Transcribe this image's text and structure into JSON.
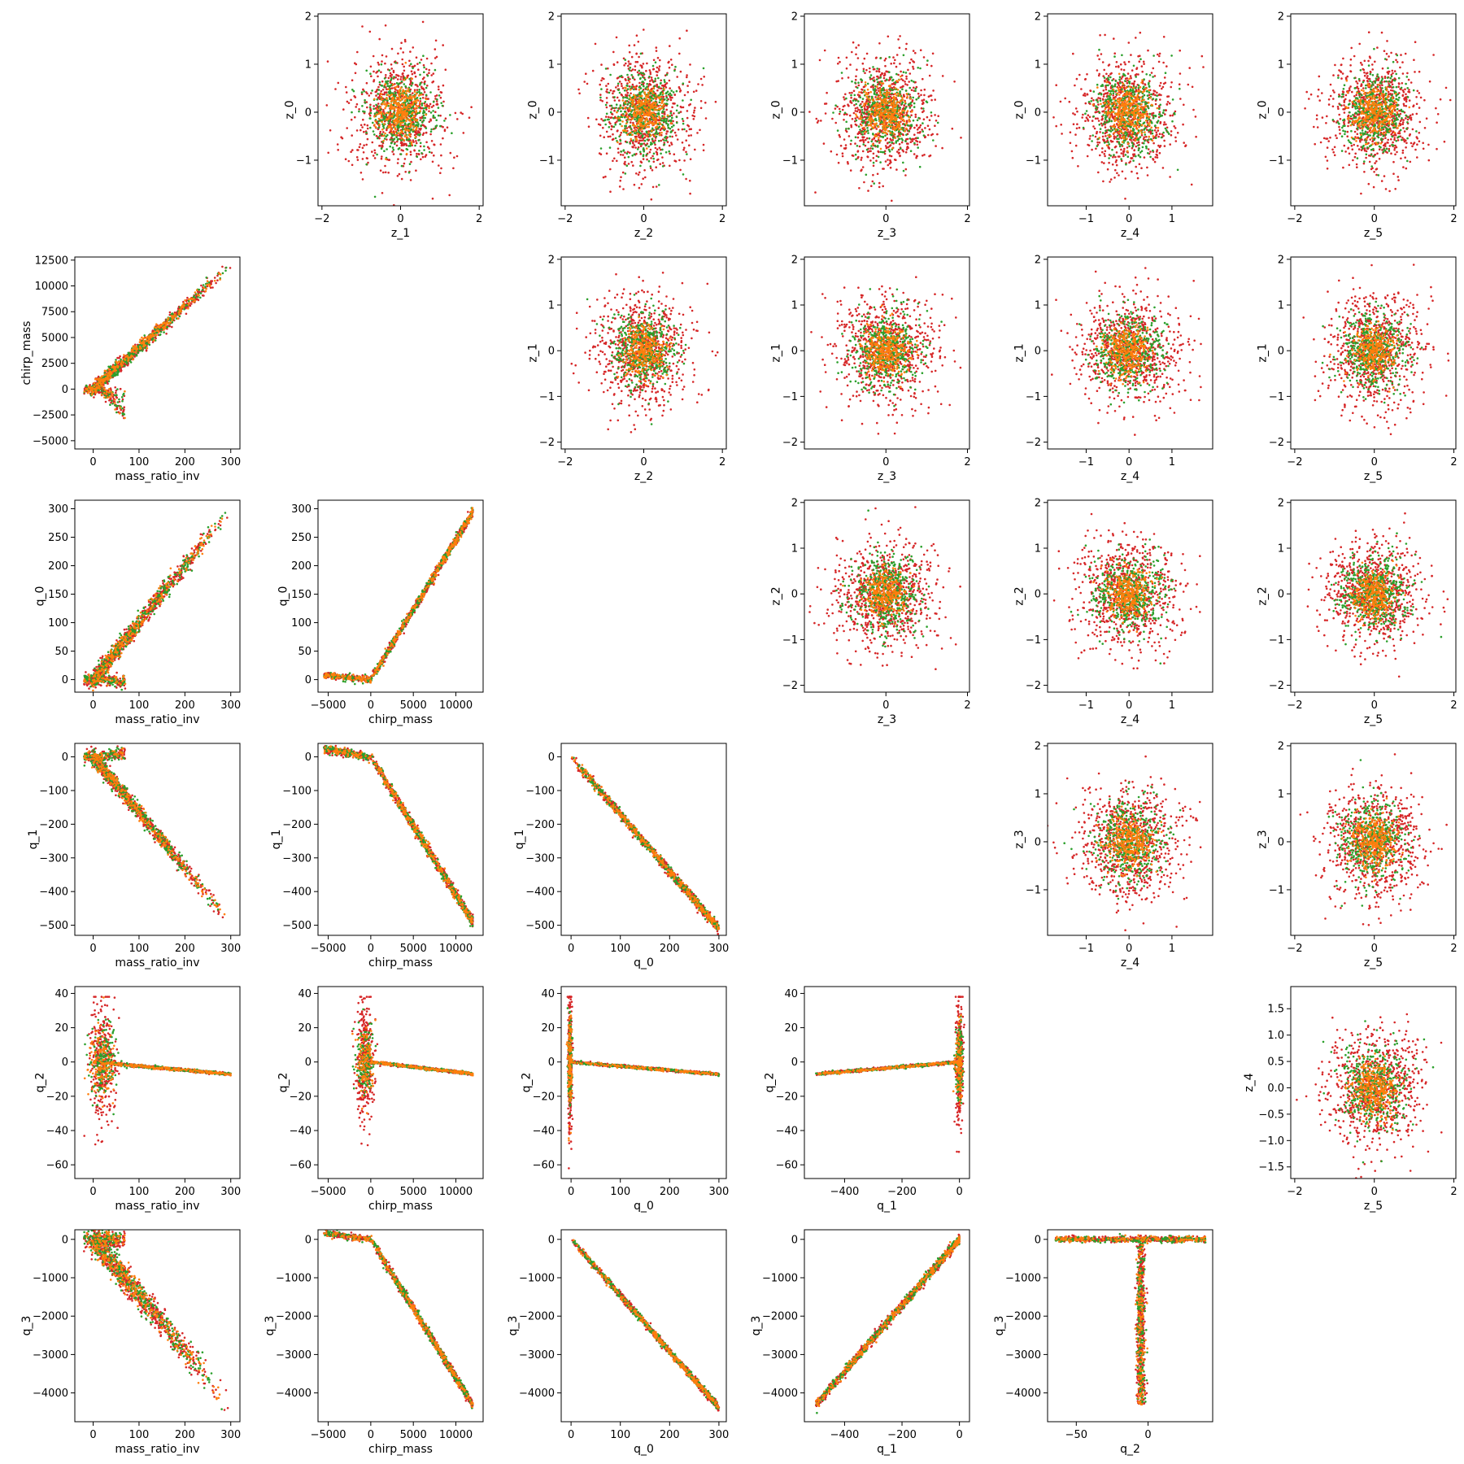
{
  "chart_data": {
    "type": "scatter",
    "layout": "6x6 pair grid; cells on/above diagonal-1 shown",
    "series_colors": {
      "green": "#2ca02c",
      "orange": "#ff7f0e",
      "red": "#d62728"
    },
    "panels": [
      {
        "row": 0,
        "col": 1,
        "xlabel": "z_1",
        "ylabel": "z_0",
        "xlim": [
          -2.1,
          2.1
        ],
        "ylim": [
          -1.95,
          2.05
        ],
        "xticks": [
          -2,
          0,
          2
        ],
        "yticks": [
          -1,
          0,
          1,
          2
        ],
        "kind": "gauss",
        "sx": 0.6,
        "sy": 0.6
      },
      {
        "row": 0,
        "col": 2,
        "xlabel": "z_2",
        "ylabel": "z_0",
        "xlim": [
          -2.1,
          2.1
        ],
        "ylim": [
          -1.95,
          2.05
        ],
        "xticks": [
          -2,
          0,
          2
        ],
        "yticks": [
          -1,
          0,
          1,
          2
        ],
        "kind": "gauss",
        "sx": 0.6,
        "sy": 0.6
      },
      {
        "row": 0,
        "col": 3,
        "xlabel": "z_3",
        "ylabel": "z_0",
        "xlim": [
          -2.0,
          2.05
        ],
        "ylim": [
          -1.95,
          2.05
        ],
        "xticks": [
          0,
          2
        ],
        "yticks": [
          -1,
          0,
          1,
          2
        ],
        "kind": "gauss",
        "sx": 0.6,
        "sy": 0.6
      },
      {
        "row": 0,
        "col": 4,
        "xlabel": "z_4",
        "ylabel": "z_0",
        "xlim": [
          -1.9,
          1.95
        ],
        "ylim": [
          -1.95,
          2.05
        ],
        "xticks": [
          -1,
          0,
          1
        ],
        "yticks": [
          -1,
          0,
          1,
          2
        ],
        "kind": "gauss",
        "sx": 0.6,
        "sy": 0.6
      },
      {
        "row": 0,
        "col": 5,
        "xlabel": "z_5",
        "ylabel": "z_0",
        "xlim": [
          -2.1,
          2.05
        ],
        "ylim": [
          -1.95,
          2.05
        ],
        "xticks": [
          -2,
          0,
          2
        ],
        "yticks": [
          -1,
          0,
          1,
          2
        ],
        "kind": "gauss",
        "sx": 0.6,
        "sy": 0.6
      },
      {
        "row": 1,
        "col": 0,
        "xlabel": "mass_ratio_inv",
        "ylabel": "chirp_mass",
        "xlim": [
          -40,
          320
        ],
        "ylim": [
          -5800,
          12800
        ],
        "xticks": [
          0,
          100,
          200,
          300
        ],
        "yticks": [
          -5000,
          -2500,
          0,
          2500,
          5000,
          7500,
          10000,
          12500
        ],
        "kind": "lin_branch",
        "a": 40,
        "b": 0,
        "n2": -2500,
        "spread": 300
      },
      {
        "row": 1,
        "col": 2,
        "xlabel": "z_2",
        "ylabel": "z_1",
        "xlim": [
          -2.1,
          2.1
        ],
        "ylim": [
          -2.15,
          2.05
        ],
        "xticks": [
          -2,
          0,
          2
        ],
        "yticks": [
          -2,
          -1,
          0,
          1,
          2
        ],
        "kind": "gauss",
        "sx": 0.6,
        "sy": 0.6
      },
      {
        "row": 1,
        "col": 3,
        "xlabel": "z_3",
        "ylabel": "z_1",
        "xlim": [
          -2.0,
          2.05
        ],
        "ylim": [
          -2.15,
          2.05
        ],
        "xticks": [
          0,
          2
        ],
        "yticks": [
          -2,
          -1,
          0,
          1,
          2
        ],
        "kind": "gauss",
        "sx": 0.6,
        "sy": 0.6
      },
      {
        "row": 1,
        "col": 4,
        "xlabel": "z_4",
        "ylabel": "z_1",
        "xlim": [
          -1.9,
          1.95
        ],
        "ylim": [
          -2.15,
          2.05
        ],
        "xticks": [
          -1,
          0,
          1
        ],
        "yticks": [
          -2,
          -1,
          0,
          1,
          2
        ],
        "kind": "gauss",
        "sx": 0.6,
        "sy": 0.6
      },
      {
        "row": 1,
        "col": 5,
        "xlabel": "z_5",
        "ylabel": "z_1",
        "xlim": [
          -2.1,
          2.05
        ],
        "ylim": [
          -2.15,
          2.05
        ],
        "xticks": [
          -2,
          0,
          2
        ],
        "yticks": [
          -2,
          -1,
          0,
          1,
          2
        ],
        "kind": "gauss",
        "sx": 0.6,
        "sy": 0.6
      },
      {
        "row": 2,
        "col": 0,
        "xlabel": "mass_ratio_inv",
        "ylabel": "q_0",
        "xlim": [
          -40,
          320
        ],
        "ylim": [
          -22,
          315
        ],
        "xticks": [
          0,
          100,
          200,
          300
        ],
        "yticks": [
          0,
          50,
          100,
          150,
          200,
          250,
          300
        ],
        "kind": "lin_branch",
        "a": 1,
        "b": 0,
        "n2": -8,
        "spread": 8
      },
      {
        "row": 2,
        "col": 1,
        "xlabel": "chirp_mass",
        "ylabel": "q_0",
        "xlim": [
          -6200,
          13200
        ],
        "ylim": [
          -22,
          315
        ],
        "xticks": [
          -5000,
          0,
          5000,
          10000
        ],
        "yticks": [
          0,
          50,
          100,
          150,
          200,
          250,
          300
        ],
        "kind": "hinge",
        "slope": 0.0245,
        "neg": 0.0015,
        "spread": 4
      },
      {
        "row": 2,
        "col": 3,
        "xlabel": "z_3",
        "ylabel": "z_2",
        "xlim": [
          -2.0,
          2.05
        ],
        "ylim": [
          -2.15,
          2.05
        ],
        "xticks": [
          0,
          2
        ],
        "yticks": [
          -2,
          -1,
          0,
          1,
          2
        ],
        "kind": "gauss",
        "sx": 0.6,
        "sy": 0.6
      },
      {
        "row": 2,
        "col": 4,
        "xlabel": "z_4",
        "ylabel": "z_2",
        "xlim": [
          -1.9,
          1.95
        ],
        "ylim": [
          -2.15,
          2.05
        ],
        "xticks": [
          -1,
          0,
          1
        ],
        "yticks": [
          -2,
          -1,
          0,
          1,
          2
        ],
        "kind": "gauss",
        "sx": 0.6,
        "sy": 0.6
      },
      {
        "row": 2,
        "col": 5,
        "xlabel": "z_5",
        "ylabel": "z_2",
        "xlim": [
          -2.1,
          2.05
        ],
        "ylim": [
          -2.15,
          2.05
        ],
        "xticks": [
          -2,
          0,
          2
        ],
        "yticks": [
          -2,
          -1,
          0,
          1,
          2
        ],
        "kind": "gauss",
        "sx": 0.6,
        "sy": 0.6
      },
      {
        "row": 3,
        "col": 0,
        "xlabel": "mass_ratio_inv",
        "ylabel": "q_1",
        "xlim": [
          -40,
          320
        ],
        "ylim": [
          -530,
          40
        ],
        "xticks": [
          0,
          100,
          200,
          300
        ],
        "yticks": [
          -500,
          -400,
          -300,
          -200,
          -100,
          0
        ],
        "kind": "lin_branch",
        "a": -1.65,
        "b": 0,
        "n2": 20,
        "spread": 12
      },
      {
        "row": 3,
        "col": 1,
        "xlabel": "chirp_mass",
        "ylabel": "q_1",
        "xlim": [
          -6200,
          13200
        ],
        "ylim": [
          -530,
          40
        ],
        "xticks": [
          -5000,
          0,
          5000,
          10000
        ],
        "yticks": [
          -500,
          -400,
          -300,
          -200,
          -100,
          0
        ],
        "kind": "hinge",
        "slope": -0.041,
        "neg": -0.004,
        "spread": 8
      },
      {
        "row": 3,
        "col": 2,
        "xlabel": "q_0",
        "ylabel": "q_1",
        "xlim": [
          -20,
          315
        ],
        "ylim": [
          -530,
          40
        ],
        "xticks": [
          0,
          100,
          200,
          300
        ],
        "yticks": [
          -500,
          -400,
          -300,
          -200,
          -100,
          0
        ],
        "kind": "line",
        "slope": -1.7,
        "spread": 7
      },
      {
        "row": 3,
        "col": 4,
        "xlabel": "z_4",
        "ylabel": "z_3",
        "xlim": [
          -1.9,
          1.95
        ],
        "ylim": [
          -1.95,
          2.05
        ],
        "xticks": [
          -1,
          0,
          1
        ],
        "yticks": [
          -1,
          0,
          1,
          2
        ],
        "kind": "gauss",
        "sx": 0.6,
        "sy": 0.6
      },
      {
        "row": 3,
        "col": 5,
        "xlabel": "z_5",
        "ylabel": "z_3",
        "xlim": [
          -2.1,
          2.05
        ],
        "ylim": [
          -1.95,
          2.05
        ],
        "xticks": [
          -2,
          0,
          2
        ],
        "yticks": [
          -1,
          0,
          1,
          2
        ],
        "kind": "gauss",
        "sx": 0.6,
        "sy": 0.6
      },
      {
        "row": 4,
        "col": 0,
        "xlabel": "mass_ratio_inv",
        "ylabel": "q_2",
        "xlim": [
          -40,
          320
        ],
        "ylim": [
          -68,
          44
        ],
        "xticks": [
          0,
          100,
          200,
          300
        ],
        "yticks": [
          -60,
          -40,
          -20,
          0,
          20,
          40
        ],
        "kind": "cross",
        "slope": -0.024,
        "vx": 20,
        "vspread": 14,
        "vsd": 18
      },
      {
        "row": 4,
        "col": 1,
        "xlabel": "chirp_mass",
        "ylabel": "q_2",
        "xlim": [
          -6200,
          13200
        ],
        "ylim": [
          -68,
          44
        ],
        "xticks": [
          -5000,
          0,
          5000,
          10000
        ],
        "yticks": [
          -60,
          -40,
          -20,
          0,
          20,
          40
        ],
        "kind": "cross",
        "slope": -0.00058,
        "vx": -700,
        "vspread": 500,
        "vsd": 18
      },
      {
        "row": 4,
        "col": 2,
        "xlabel": "q_0",
        "ylabel": "q_2",
        "xlim": [
          -20,
          315
        ],
        "ylim": [
          -68,
          44
        ],
        "xticks": [
          0,
          100,
          200,
          300
        ],
        "yticks": [
          -60,
          -40,
          -20,
          0,
          20,
          40
        ],
        "kind": "cross",
        "slope": -0.024,
        "vx": -2,
        "vspread": 2,
        "vsd": 20
      },
      {
        "row": 4,
        "col": 3,
        "xlabel": "q_1",
        "ylabel": "q_2",
        "xlim": [
          -540,
          35
        ],
        "ylim": [
          -68,
          44
        ],
        "xticks": [
          -400,
          -200,
          0
        ],
        "yticks": [
          -60,
          -40,
          -20,
          0,
          20,
          40
        ],
        "kind": "cross",
        "slope": 0.014,
        "vx": 0,
        "vspread": 6,
        "vsd": 18
      },
      {
        "row": 4,
        "col": 5,
        "xlabel": "z_5",
        "ylabel": "z_4",
        "xlim": [
          -2.1,
          2.05
        ],
        "ylim": [
          -1.72,
          1.92
        ],
        "xticks": [
          -2,
          0,
          2
        ],
        "yticks": [
          -1.5,
          -1.0,
          -0.5,
          0.0,
          0.5,
          1.0,
          1.5
        ],
        "ytick_labels": [
          "−1.5",
          "−1.0",
          "−0.5",
          "0.0",
          "0.5",
          "1.0",
          "1.5"
        ],
        "kind": "gauss",
        "sx": 0.6,
        "sy": 0.55
      },
      {
        "row": 5,
        "col": 0,
        "xlabel": "mass_ratio_inv",
        "ylabel": "q_3",
        "xlim": [
          -40,
          320
        ],
        "ylim": [
          -4750,
          250
        ],
        "xticks": [
          0,
          100,
          200,
          300
        ],
        "yticks": [
          -4000,
          -3000,
          -2000,
          -1000,
          0
        ],
        "kind": "lin_branch",
        "a": -14.5,
        "b": 0,
        "n2": 0,
        "spread": 180
      },
      {
        "row": 5,
        "col": 1,
        "xlabel": "chirp_mass",
        "ylabel": "q_3",
        "xlim": [
          -6200,
          13200
        ],
        "ylim": [
          -4750,
          250
        ],
        "xticks": [
          -5000,
          0,
          5000,
          10000
        ],
        "yticks": [
          -4000,
          -3000,
          -2000,
          -1000,
          0
        ],
        "kind": "hinge",
        "slope": -0.36,
        "neg": -0.03,
        "spread": 60
      },
      {
        "row": 5,
        "col": 2,
        "xlabel": "q_0",
        "ylabel": "q_3",
        "xlim": [
          -20,
          315
        ],
        "ylim": [
          -4750,
          250
        ],
        "xticks": [
          0,
          100,
          200,
          300
        ],
        "yticks": [
          -4000,
          -3000,
          -2000,
          -1000,
          0
        ],
        "kind": "line",
        "slope": -14.6,
        "spread": 45
      },
      {
        "row": 5,
        "col": 3,
        "xlabel": "q_1",
        "ylabel": "q_3",
        "xlim": [
          -540,
          35
        ],
        "ylim": [
          -4750,
          250
        ],
        "xticks": [
          -400,
          -200,
          0
        ],
        "yticks": [
          -4000,
          -3000,
          -2000,
          -1000,
          0
        ],
        "kind": "line",
        "slope": 8.6,
        "spread": 60
      },
      {
        "row": 5,
        "col": 4,
        "xlabel": "q_2",
        "ylabel": "q_3",
        "xlim": [
          -70,
          45
        ],
        "ylim": [
          -4750,
          250
        ],
        "xticks": [
          -50,
          0
        ],
        "yticks": [
          -4000,
          -3000,
          -2000,
          -1000,
          0
        ],
        "kind": "tee",
        "vx": -5,
        "hmin": -65,
        "hmax": 40
      }
    ]
  }
}
